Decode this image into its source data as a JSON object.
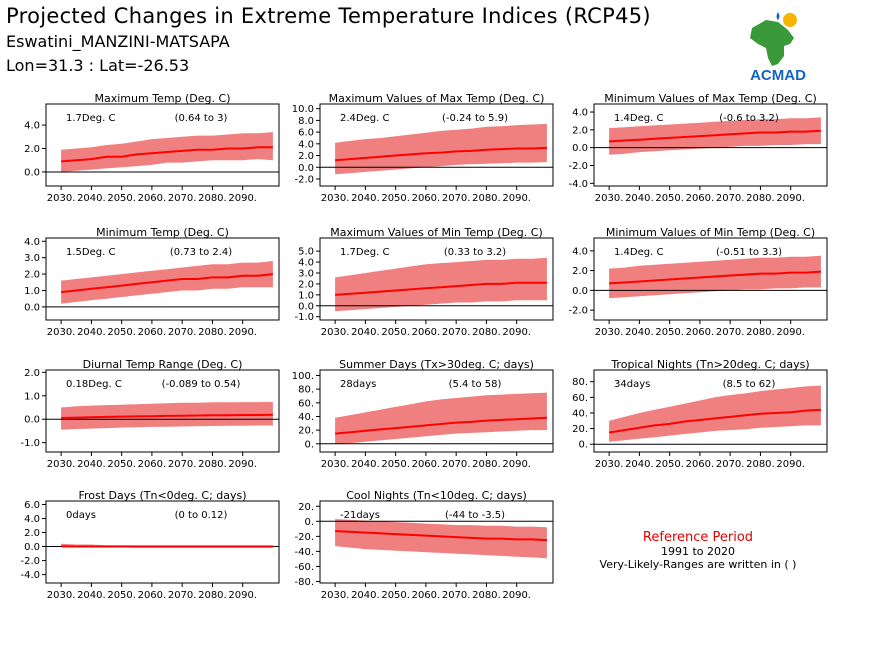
{
  "header": {
    "title": "Projected Changes in Extreme Temperature Indices (RCP45)",
    "station": "Eswatini_MANZINI-MATSAPA",
    "coords": "Lon=31.3 : Lat=-26.53"
  },
  "logo": {
    "text": "ACMAD",
    "icon": "africa-map-logo"
  },
  "reference": {
    "title": "Reference Period",
    "period": "1991 to 2020",
    "note": "Very-Likely-Ranges are written in ( )"
  },
  "colors": {
    "band": "#f08080",
    "line": "#ff0000",
    "logo_text": "#1565c0",
    "logo_map": "#3a9a3a",
    "logo_sun": "#f5b400"
  },
  "chart_data": [
    {
      "type": "area",
      "title": "Maximum Temp (Deg. C)",
      "value_text": "1.7Deg. C",
      "range_text": "(0.64 to 3)",
      "x": [
        2030,
        2035,
        2040,
        2045,
        2050,
        2055,
        2060,
        2065,
        2070,
        2075,
        2080,
        2085,
        2090,
        2095,
        2100
      ],
      "series": [
        {
          "values": [
            0.9,
            1.0,
            1.1,
            1.3,
            1.3,
            1.5,
            1.6,
            1.7,
            1.8,
            1.9,
            1.9,
            2.0,
            2.0,
            2.1,
            2.1
          ]
        },
        {
          "values": [
            0.0,
            0.1,
            0.2,
            0.3,
            0.4,
            0.5,
            0.6,
            0.8,
            0.8,
            0.9,
            1.0,
            1.0,
            1.0,
            1.1,
            1.0
          ]
        },
        {
          "values": [
            1.9,
            2.0,
            2.1,
            2.3,
            2.4,
            2.6,
            2.8,
            2.9,
            3.0,
            3.1,
            3.1,
            3.2,
            3.3,
            3.3,
            3.4
          ]
        }
      ],
      "xticks": [
        "2030.",
        "2040.",
        "2050.",
        "2060.",
        "2070.",
        "2080.",
        "2090."
      ],
      "yticks": [
        0.0,
        2.0,
        4.0
      ],
      "ytick_labels": [
        "0.0",
        "2.0",
        "4.0"
      ],
      "ylim": [
        -1.2,
        5.8
      ]
    },
    {
      "type": "area",
      "title": "Maximum Values of Max Temp (Deg. C)",
      "value_text": "2.4Deg. C",
      "range_text": "(-0.24 to 5.9)",
      "x": [
        2030,
        2035,
        2040,
        2045,
        2050,
        2055,
        2060,
        2065,
        2070,
        2075,
        2080,
        2085,
        2090,
        2095,
        2100
      ],
      "series": [
        {
          "values": [
            1.2,
            1.4,
            1.6,
            1.8,
            2.0,
            2.2,
            2.4,
            2.5,
            2.7,
            2.8,
            3.0,
            3.1,
            3.2,
            3.2,
            3.3
          ]
        },
        {
          "values": [
            -1.2,
            -1.0,
            -0.8,
            -0.6,
            -0.4,
            -0.2,
            0.0,
            0.2,
            0.4,
            0.5,
            0.6,
            0.7,
            0.8,
            0.8,
            0.9
          ]
        },
        {
          "values": [
            4.2,
            4.5,
            4.8,
            5.0,
            5.3,
            5.6,
            5.9,
            6.2,
            6.4,
            6.6,
            6.9,
            7.0,
            7.2,
            7.3,
            7.4
          ]
        }
      ],
      "xticks": [
        "2030.",
        "2040.",
        "2050.",
        "2060.",
        "2070.",
        "2080.",
        "2090."
      ],
      "yticks": [
        -2.0,
        0.0,
        2.0,
        4.0,
        6.0,
        8.0,
        10.0
      ],
      "ytick_labels": [
        "-2.0",
        "0.0",
        "2.0",
        "4.0",
        "6.0",
        "8.0",
        "10.0"
      ],
      "ylim": [
        -3.2,
        10.8
      ]
    },
    {
      "type": "area",
      "title": "Minimum Values of Max Temp (Deg. C)",
      "value_text": "1.4Deg. C",
      "range_text": "(-0.6 to 3.2)",
      "x": [
        2030,
        2035,
        2040,
        2045,
        2050,
        2055,
        2060,
        2065,
        2070,
        2075,
        2080,
        2085,
        2090,
        2095,
        2100
      ],
      "series": [
        {
          "values": [
            0.7,
            0.8,
            0.9,
            1.0,
            1.1,
            1.2,
            1.3,
            1.4,
            1.5,
            1.6,
            1.7,
            1.7,
            1.8,
            1.8,
            1.9
          ]
        },
        {
          "values": [
            -0.8,
            -0.7,
            -0.5,
            -0.4,
            -0.3,
            -0.2,
            -0.1,
            0.0,
            0.1,
            0.2,
            0.2,
            0.3,
            0.3,
            0.4,
            0.4
          ]
        },
        {
          "values": [
            2.2,
            2.3,
            2.4,
            2.5,
            2.6,
            2.7,
            2.8,
            2.9,
            3.0,
            3.1,
            3.2,
            3.2,
            3.3,
            3.3,
            3.4
          ]
        }
      ],
      "xticks": [
        "2030.",
        "2040.",
        "2050.",
        "2060.",
        "2070.",
        "2080.",
        "2090."
      ],
      "yticks": [
        -4.0,
        -2.0,
        0.0,
        2.0,
        4.0
      ],
      "ytick_labels": [
        "-4.0",
        "-2.0",
        "0.0",
        "2.0",
        "4.0"
      ],
      "ylim": [
        -4.3,
        4.9
      ]
    },
    {
      "type": "area",
      "title": "Minimum Temp (Deg. C)",
      "value_text": "1.5Deg. C",
      "range_text": "(0.73 to 2.4)",
      "x": [
        2030,
        2035,
        2040,
        2045,
        2050,
        2055,
        2060,
        2065,
        2070,
        2075,
        2080,
        2085,
        2090,
        2095,
        2100
      ],
      "series": [
        {
          "values": [
            0.9,
            1.0,
            1.1,
            1.2,
            1.3,
            1.4,
            1.5,
            1.6,
            1.7,
            1.7,
            1.8,
            1.8,
            1.9,
            1.9,
            2.0
          ]
        },
        {
          "values": [
            0.2,
            0.3,
            0.4,
            0.5,
            0.6,
            0.7,
            0.8,
            0.9,
            1.0,
            1.0,
            1.1,
            1.1,
            1.2,
            1.2,
            1.2
          ]
        },
        {
          "values": [
            1.6,
            1.7,
            1.8,
            1.9,
            2.0,
            2.1,
            2.2,
            2.3,
            2.4,
            2.5,
            2.6,
            2.6,
            2.7,
            2.7,
            2.8
          ]
        }
      ],
      "xticks": [
        "2030.",
        "2040.",
        "2050.",
        "2060.",
        "2070.",
        "2080.",
        "2090."
      ],
      "yticks": [
        0.0,
        1.0,
        2.0,
        3.0,
        4.0
      ],
      "ytick_labels": [
        "0.0",
        "1.0",
        "2.0",
        "3.0",
        "4.0"
      ],
      "ylim": [
        -0.8,
        4.2
      ]
    },
    {
      "type": "area",
      "title": "Maximum Values of Min Temp (Deg. C)",
      "value_text": "1.7Deg. C",
      "range_text": "(0.33 to 3.2)",
      "x": [
        2030,
        2035,
        2040,
        2045,
        2050,
        2055,
        2060,
        2065,
        2070,
        2075,
        2080,
        2085,
        2090,
        2095,
        2100
      ],
      "series": [
        {
          "values": [
            1.0,
            1.1,
            1.2,
            1.3,
            1.4,
            1.5,
            1.6,
            1.7,
            1.8,
            1.9,
            2.0,
            2.0,
            2.1,
            2.1,
            2.1
          ]
        },
        {
          "values": [
            -0.5,
            -0.4,
            -0.3,
            -0.2,
            -0.1,
            0.0,
            0.1,
            0.2,
            0.3,
            0.3,
            0.4,
            0.4,
            0.5,
            0.5,
            0.5
          ]
        },
        {
          "values": [
            2.6,
            2.8,
            3.0,
            3.2,
            3.4,
            3.6,
            3.8,
            3.9,
            4.0,
            4.1,
            4.2,
            4.2,
            4.3,
            4.3,
            4.4
          ]
        }
      ],
      "xticks": [
        "2030.",
        "2040.",
        "2050.",
        "2060.",
        "2070.",
        "2080.",
        "2090."
      ],
      "yticks": [
        -1.0,
        0.0,
        1.0,
        2.0,
        3.0,
        4.0,
        5.0
      ],
      "ytick_labels": [
        "-1.0",
        "0.0",
        "1.0",
        "2.0",
        "3.0",
        "4.0",
        "5.0"
      ],
      "ylim": [
        -1.3,
        6.2
      ]
    },
    {
      "type": "area",
      "title": "Minimum Values of Min Temp (Deg. C)",
      "value_text": "1.4Deg. C",
      "range_text": "(-0.51 to 3.3)",
      "x": [
        2030,
        2035,
        2040,
        2045,
        2050,
        2055,
        2060,
        2065,
        2070,
        2075,
        2080,
        2085,
        2090,
        2095,
        2100
      ],
      "series": [
        {
          "values": [
            0.7,
            0.8,
            0.9,
            1.0,
            1.1,
            1.2,
            1.3,
            1.4,
            1.5,
            1.6,
            1.7,
            1.7,
            1.8,
            1.8,
            1.9
          ]
        },
        {
          "values": [
            -0.8,
            -0.7,
            -0.6,
            -0.5,
            -0.4,
            -0.3,
            -0.2,
            -0.1,
            0.0,
            0.1,
            0.1,
            0.2,
            0.2,
            0.3,
            0.3
          ]
        },
        {
          "values": [
            2.2,
            2.3,
            2.5,
            2.6,
            2.7,
            2.8,
            2.9,
            3.0,
            3.1,
            3.2,
            3.3,
            3.3,
            3.4,
            3.4,
            3.5
          ]
        }
      ],
      "xticks": [
        "2030.",
        "2040.",
        "2050.",
        "2060.",
        "2070.",
        "2080.",
        "2090."
      ],
      "yticks": [
        -2.0,
        0.0,
        2.0,
        4.0
      ],
      "ytick_labels": [
        "-2.0",
        "0.0",
        "2.0",
        "4.0"
      ],
      "ylim": [
        -3.0,
        5.3
      ]
    },
    {
      "type": "area",
      "title": "Diurnal Temp Range (Deg. C)",
      "value_text": "0.18Deg. C",
      "range_text": "(-0.089 to 0.54)",
      "x": [
        2030,
        2035,
        2040,
        2045,
        2050,
        2055,
        2060,
        2065,
        2070,
        2075,
        2080,
        2085,
        2090,
        2095,
        2100
      ],
      "series": [
        {
          "values": [
            0.05,
            0.07,
            0.08,
            0.1,
            0.11,
            0.12,
            0.13,
            0.14,
            0.15,
            0.16,
            0.17,
            0.17,
            0.18,
            0.18,
            0.19
          ]
        },
        {
          "values": [
            -0.45,
            -0.42,
            -0.4,
            -0.38,
            -0.36,
            -0.34,
            -0.33,
            -0.32,
            -0.31,
            -0.3,
            -0.29,
            -0.28,
            -0.28,
            -0.27,
            -0.27
          ]
        },
        {
          "values": [
            0.5,
            0.55,
            0.58,
            0.6,
            0.62,
            0.64,
            0.66,
            0.68,
            0.7,
            0.7,
            0.72,
            0.72,
            0.73,
            0.73,
            0.74
          ]
        }
      ],
      "xticks": [
        "2030.",
        "2040.",
        "2050.",
        "2060.",
        "2070.",
        "2080.",
        "2090."
      ],
      "yticks": [
        -1.0,
        0.0,
        1.0,
        2.0
      ],
      "ytick_labels": [
        "-1.0",
        "0.0",
        "1.0",
        "2.0"
      ],
      "ylim": [
        -1.4,
        2.1
      ]
    },
    {
      "type": "area",
      "title": "Summer Days (Tx>30deg. C; days)",
      "value_text": "28days",
      "range_text": "(5.4 to 58)",
      "x": [
        2030,
        2035,
        2040,
        2045,
        2050,
        2055,
        2060,
        2065,
        2070,
        2075,
        2080,
        2085,
        2090,
        2095,
        2100
      ],
      "series": [
        {
          "values": [
            15,
            17,
            19,
            21,
            23,
            25,
            27,
            29,
            31,
            32,
            34,
            35,
            36,
            37,
            38
          ]
        },
        {
          "values": [
            0,
            1,
            3,
            5,
            7,
            9,
            11,
            13,
            15,
            16,
            17,
            18,
            19,
            20,
            20
          ]
        },
        {
          "values": [
            38,
            42,
            46,
            50,
            54,
            58,
            62,
            65,
            67,
            69,
            71,
            72,
            73,
            74,
            75
          ]
        }
      ],
      "xticks": [
        "2030.",
        "2040.",
        "2050.",
        "2060.",
        "2070.",
        "2080.",
        "2090."
      ],
      "yticks": [
        0,
        20,
        40,
        60,
        80,
        100
      ],
      "ytick_labels": [
        "0.",
        "20.",
        "40.",
        "60.",
        "80.",
        "100."
      ],
      "ylim": [
        -12,
        108
      ]
    },
    {
      "type": "area",
      "title": "Tropical Nights (Tn>20deg. C; days)",
      "value_text": "34days",
      "range_text": "(8.5 to 62)",
      "x": [
        2030,
        2035,
        2040,
        2045,
        2050,
        2055,
        2060,
        2065,
        2070,
        2075,
        2080,
        2085,
        2090,
        2095,
        2100
      ],
      "series": [
        {
          "values": [
            15,
            18,
            21,
            24,
            26,
            29,
            31,
            33,
            35,
            37,
            39,
            40,
            41,
            43,
            44
          ]
        },
        {
          "values": [
            3,
            5,
            7,
            9,
            11,
            13,
            15,
            17,
            18,
            19,
            21,
            22,
            23,
            24,
            24
          ]
        },
        {
          "values": [
            30,
            35,
            40,
            44,
            48,
            52,
            56,
            60,
            63,
            65,
            68,
            70,
            72,
            74,
            75
          ]
        }
      ],
      "xticks": [
        "2030.",
        "2040.",
        "2050.",
        "2060.",
        "2070.",
        "2080.",
        "2090."
      ],
      "yticks": [
        0,
        20,
        40,
        60,
        80
      ],
      "ytick_labels": [
        "0.",
        "20.",
        "40.",
        "60.",
        "80."
      ],
      "ylim": [
        -10,
        95
      ]
    },
    {
      "type": "area",
      "title": "Frost Days (Tn<0deg. C; days)",
      "value_text": "0days",
      "range_text": "(0 to 0.12)",
      "x": [
        2030,
        2035,
        2040,
        2045,
        2050,
        2055,
        2060,
        2065,
        2070,
        2075,
        2080,
        2085,
        2090,
        2095,
        2100
      ],
      "series": [
        {
          "values": [
            0.02,
            0.01,
            0.01,
            0.01,
            0.01,
            0.0,
            0.0,
            0.0,
            0.0,
            0.0,
            0.0,
            0.0,
            0.0,
            0.0,
            0.0
          ]
        },
        {
          "values": [
            0,
            0,
            0,
            0,
            0,
            0,
            0,
            0,
            0,
            0,
            0,
            0,
            0,
            0,
            0
          ]
        },
        {
          "values": [
            0.4,
            0.3,
            0.3,
            0.2,
            0.2,
            0.2,
            0.2,
            0.2,
            0.2,
            0.2,
            0.2,
            0.2,
            0.2,
            0.2,
            0.2
          ]
        }
      ],
      "xticks": [
        "2030.",
        "2040.",
        "2050.",
        "2060.",
        "2070.",
        "2080.",
        "2090."
      ],
      "yticks": [
        -4.0,
        -2.0,
        0.0,
        2.0,
        4.0,
        6.0
      ],
      "ytick_labels": [
        "-4.0",
        "-2.0",
        "0.0",
        "2.0",
        "4.0",
        "6.0"
      ],
      "ylim": [
        -5.2,
        6.5
      ]
    },
    {
      "type": "area",
      "title": "Cool Nights (Tn<10deg. C; days)",
      "value_text": "-21days",
      "range_text": "(-44 to -3.5)",
      "x": [
        2030,
        2035,
        2040,
        2045,
        2050,
        2055,
        2060,
        2065,
        2070,
        2075,
        2080,
        2085,
        2090,
        2095,
        2100
      ],
      "series": [
        {
          "values": [
            -13,
            -14,
            -15,
            -16,
            -17,
            -18,
            -19,
            -20,
            -21,
            -22,
            -23,
            -23,
            -24,
            -24,
            -25
          ]
        },
        {
          "values": [
            -33,
            -35,
            -37,
            -38,
            -39,
            -40,
            -41,
            -42,
            -43,
            -44,
            -45,
            -46,
            -47,
            -48,
            -49
          ]
        },
        {
          "values": [
            3,
            2,
            1,
            0,
            -1,
            -2,
            -3,
            -4,
            -5,
            -5,
            -6,
            -6,
            -7,
            -7,
            -8
          ]
        }
      ],
      "xticks": [
        "2030.",
        "2040.",
        "2050.",
        "2060.",
        "2070.",
        "2080.",
        "2090."
      ],
      "yticks": [
        -80,
        -60,
        -40,
        -20,
        0,
        20
      ],
      "ytick_labels": [
        "-80.",
        "-60.",
        "-40.",
        "-20.",
        "0.",
        "20."
      ],
      "ylim": [
        -82,
        27
      ]
    }
  ]
}
